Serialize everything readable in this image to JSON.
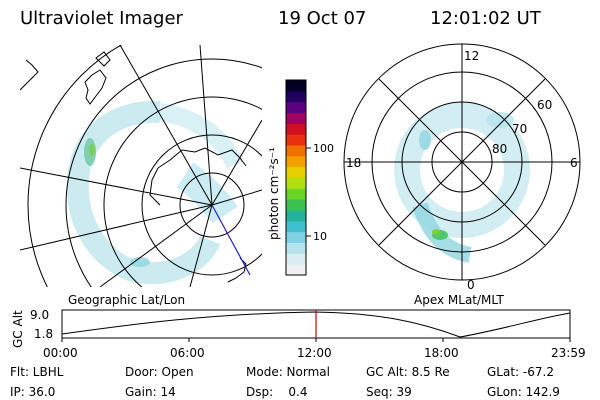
{
  "header": {
    "title": "Ultraviolet Imager",
    "date": "19 Oct 07",
    "time": "12:01:02 UT"
  },
  "colorbar": {
    "label": "photon cm⁻²s⁻¹",
    "ticks": [
      "100",
      "10"
    ],
    "colors": [
      "#f0f0f0",
      "#d9eef2",
      "#b5e3ec",
      "#7fd2e2",
      "#3fbfd0",
      "#22b39a",
      "#3cc050",
      "#6ad428",
      "#b0e010",
      "#e8d000",
      "#f4a000",
      "#f07000",
      "#e83010",
      "#d01020",
      "#a00060",
      "#5a0080",
      "#200060",
      "#000020"
    ]
  },
  "left_map": {
    "caption": "Geographic Lat/Lon"
  },
  "right_map": {
    "caption": "Apex MLat/MLT",
    "mlt_labels": {
      "top": "12",
      "left": "18",
      "right": "6",
      "bottom": "0"
    },
    "lat_labels": [
      "60",
      "70",
      "80"
    ]
  },
  "altitude_plot": {
    "ylabel": "GC Alt",
    "yticks": [
      "9.0",
      "1.8"
    ],
    "xticks": [
      "00:00",
      "06:00",
      "12:00",
      "18:00",
      "23:59"
    ],
    "marker_color": "#cc0000"
  },
  "info": {
    "filter": "Flt: LBHL",
    "door": "Door: Open",
    "mode": "Mode: Normal",
    "gcalt": "GC Alt: 8.5 Re",
    "glat": "GLat: -67.2",
    "ip": "IP: 36.0",
    "gain": "Gain: 14",
    "dsp": "Dsp:    0.4",
    "seq": "Seq: 39",
    "glon": "GLon: 142.9"
  }
}
